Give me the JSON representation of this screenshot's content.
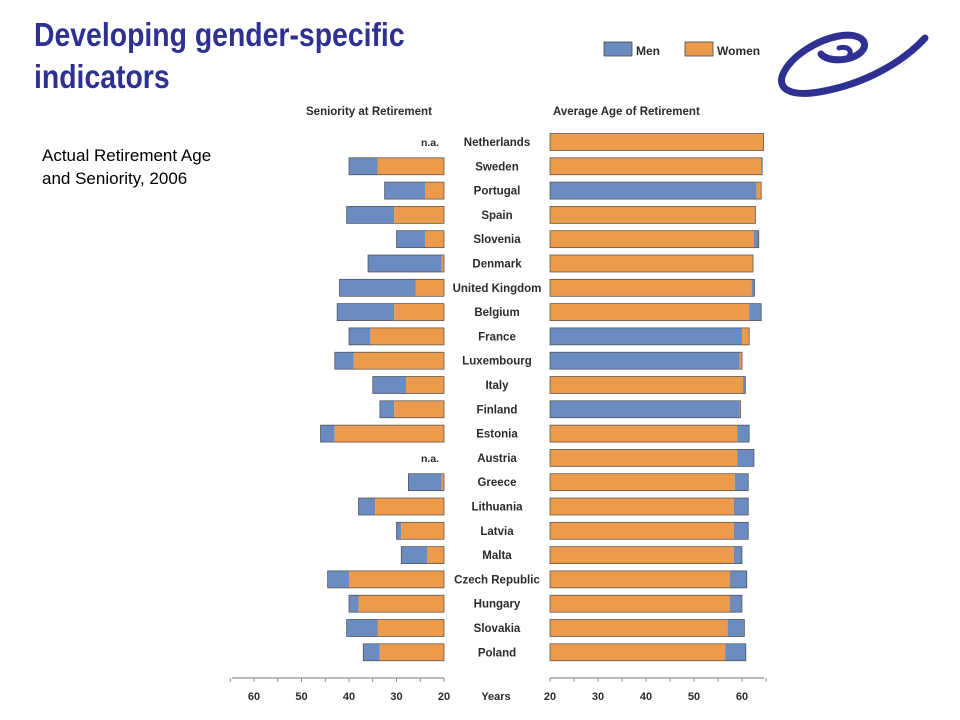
{
  "slide": {
    "title_line1": "Developing gender-specific",
    "title_line2": "indicators",
    "subtitle_line1": "Actual Retirement Age",
    "subtitle_line2": "and Seniority, 2006"
  },
  "colors": {
    "men": "#6b8cc0",
    "women": "#ec9a4c",
    "bar_edge": "#4a4a4a",
    "title": "#2e3192",
    "logo": "#2e3192"
  },
  "chart_data": {
    "type": "bar",
    "legend": {
      "position": "top-right",
      "entries": [
        "Men",
        "Women"
      ]
    },
    "left_panel": {
      "title": "Seniority at Retirement",
      "axis_reversed": true,
      "xlim": [
        20,
        65
      ],
      "ticks": [
        "60",
        "50",
        "40",
        "30",
        "20"
      ]
    },
    "right_panel": {
      "title": "Average Age of Retirement",
      "xlim": [
        20,
        65
      ],
      "ticks": [
        "20",
        "30",
        "40",
        "50",
        "60"
      ]
    },
    "axis_unit_label": "Years",
    "na_label": "n.a.",
    "countries": [
      "Netherlands",
      "Sweden",
      "Portugal",
      "Spain",
      "Slovenia",
      "Denmark",
      "United Kingdom",
      "Belgium",
      "France",
      "Luxembourg",
      "Italy",
      "Finland",
      "Estonia",
      "Austria",
      "Greece",
      "Lithuania",
      "Latvia",
      "Malta",
      "Czech Republic",
      "Hungary",
      "Slovakia",
      "Poland"
    ],
    "seniority": [
      {
        "shorter": null,
        "longer": null,
        "shorter_group": null
      },
      {
        "shorter": 34.0,
        "longer": 40.0,
        "shorter_group": "Women"
      },
      {
        "shorter": 24.0,
        "longer": 32.5,
        "shorter_group": "Women"
      },
      {
        "shorter": 30.5,
        "longer": 40.5,
        "shorter_group": "Women"
      },
      {
        "shorter": 24.0,
        "longer": 30.0,
        "shorter_group": "Women"
      },
      {
        "shorter": 20.5,
        "longer": 36.0,
        "shorter_group": "Women"
      },
      {
        "shorter": 26.0,
        "longer": 42.0,
        "shorter_group": "Women"
      },
      {
        "shorter": 30.5,
        "longer": 42.5,
        "shorter_group": "Women"
      },
      {
        "shorter": 35.5,
        "longer": 40.0,
        "shorter_group": "Women"
      },
      {
        "shorter": 39.0,
        "longer": 43.0,
        "shorter_group": "Women"
      },
      {
        "shorter": 28.0,
        "longer": 35.0,
        "shorter_group": "Women"
      },
      {
        "shorter": 30.5,
        "longer": 33.5,
        "shorter_group": "Women"
      },
      {
        "shorter": 43.0,
        "longer": 46.0,
        "shorter_group": "Women"
      },
      {
        "shorter": null,
        "longer": null,
        "shorter_group": null
      },
      {
        "shorter": 20.5,
        "longer": 27.5,
        "shorter_group": "Women"
      },
      {
        "shorter": 34.5,
        "longer": 38.0,
        "shorter_group": "Women"
      },
      {
        "shorter": 29.0,
        "longer": 30.0,
        "shorter_group": "Women"
      },
      {
        "shorter": 23.5,
        "longer": 29.0,
        "shorter_group": "Women"
      },
      {
        "shorter": 40.0,
        "longer": 44.5,
        "shorter_group": "Women"
      },
      {
        "shorter": 38.0,
        "longer": 40.0,
        "shorter_group": "Women"
      },
      {
        "shorter": 34.0,
        "longer": 40.5,
        "shorter_group": "Women"
      },
      {
        "shorter": 33.5,
        "longer": 37.0,
        "shorter_group": "Women"
      }
    ],
    "retirement_age": [
      {
        "shorter": 64.5,
        "longer": 64.5,
        "shorter_group": "Women"
      },
      {
        "shorter": 64.0,
        "longer": 64.2,
        "shorter_group": "Women"
      },
      {
        "shorter": 63.0,
        "longer": 64.0,
        "shorter_group": "Men"
      },
      {
        "shorter": 62.8,
        "longer": 62.8,
        "shorter_group": "Women"
      },
      {
        "shorter": 62.5,
        "longer": 63.5,
        "shorter_group": "Women"
      },
      {
        "shorter": 62.3,
        "longer": 62.3,
        "shorter_group": "Women"
      },
      {
        "shorter": 62.0,
        "longer": 62.6,
        "shorter_group": "Women"
      },
      {
        "shorter": 61.5,
        "longer": 64.0,
        "shorter_group": "Women"
      },
      {
        "shorter": 60.0,
        "longer": 61.5,
        "shorter_group": "Men"
      },
      {
        "shorter": 59.5,
        "longer": 60.0,
        "shorter_group": "Men"
      },
      {
        "shorter": 60.2,
        "longer": 60.7,
        "shorter_group": "Women"
      },
      {
        "shorter": 59.5,
        "longer": 59.7,
        "shorter_group": "Men"
      },
      {
        "shorter": 59.0,
        "longer": 61.5,
        "shorter_group": "Women"
      },
      {
        "shorter": 59.0,
        "longer": 62.5,
        "shorter_group": "Women"
      },
      {
        "shorter": 58.5,
        "longer": 61.3,
        "shorter_group": "Women"
      },
      {
        "shorter": 58.3,
        "longer": 61.3,
        "shorter_group": "Women"
      },
      {
        "shorter": 58.3,
        "longer": 61.3,
        "shorter_group": "Women"
      },
      {
        "shorter": 58.3,
        "longer": 60.0,
        "shorter_group": "Women"
      },
      {
        "shorter": 57.5,
        "longer": 61.0,
        "shorter_group": "Women"
      },
      {
        "shorter": 57.5,
        "longer": 60.0,
        "shorter_group": "Women"
      },
      {
        "shorter": 57.0,
        "longer": 60.5,
        "shorter_group": "Women"
      },
      {
        "shorter": 56.5,
        "longer": 60.8,
        "shorter_group": "Women"
      }
    ]
  }
}
